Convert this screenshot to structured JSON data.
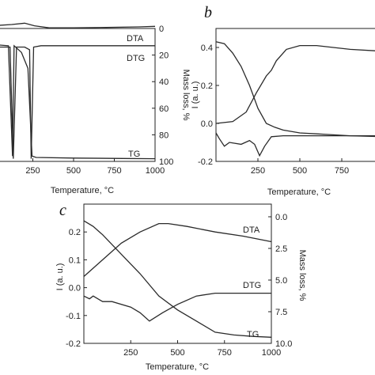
{
  "chart_data": [
    {
      "type": "line",
      "panel_label": "",
      "xlabel": "Temperature, °C",
      "ylabel_right": "Mass loss, %",
      "xlim": [
        0,
        1000
      ],
      "ylim_right": [
        100,
        0
      ],
      "x_ticks": [
        "250",
        "500",
        "750",
        "1000"
      ],
      "y_right_ticks": [
        "0",
        "20",
        "40",
        "60",
        "80",
        "100"
      ],
      "series": [
        {
          "name": "DTA",
          "points": [
            [
              0,
              -2
            ],
            [
              120,
              -3
            ],
            [
              200,
              -4
            ],
            [
              260,
              -2
            ],
            [
              350,
              -0.5
            ],
            [
              500,
              -0.5
            ],
            [
              700,
              -0.8
            ],
            [
              900,
              -1.2
            ],
            [
              1000,
              -1.6
            ]
          ]
        },
        {
          "name": "DTG",
          "points": [
            [
              0,
              14
            ],
            [
              110,
              14
            ],
            [
              130,
              98
            ],
            [
              150,
              14
            ],
            [
              170,
              14
            ],
            [
              200,
              14
            ],
            [
              230,
              16
            ],
            [
              240,
              98
            ],
            [
              255,
              14
            ],
            [
              300,
              13
            ],
            [
              500,
              13
            ],
            [
              800,
              13
            ],
            [
              1000,
              13
            ]
          ]
        },
        {
          "name": "TG",
          "points": [
            [
              0,
              12
            ],
            [
              100,
              13
            ],
            [
              125,
              96
            ],
            [
              135,
              13
            ],
            [
              180,
              18
            ],
            [
              220,
              30
            ],
            [
              245,
              96
            ],
            [
              270,
              97
            ],
            [
              500,
              97.5
            ],
            [
              800,
              97.8
            ],
            [
              1000,
              98
            ]
          ]
        }
      ],
      "labels": [
        "DTA",
        "DTG",
        "TG"
      ]
    },
    {
      "type": "line",
      "panel_label": "b",
      "xlabel": "Temperature, °C",
      "ylabel": "I (a. u.)",
      "xlim": [
        0,
        1000
      ],
      "ylim": [
        -0.2,
        0.5
      ],
      "x_ticks": [
        "250",
        "500",
        "750"
      ],
      "y_ticks": [
        "-0.2",
        "0.0",
        "0.2",
        "0.4"
      ],
      "series": [
        {
          "name": "",
          "points": [
            [
              0,
              0.43
            ],
            [
              50,
              0.42
            ],
            [
              100,
              0.37
            ],
            [
              150,
              0.3
            ],
            [
              200,
              0.2
            ],
            [
              250,
              0.08
            ],
            [
              300,
              0.0
            ],
            [
              350,
              -0.02
            ],
            [
              400,
              -0.035
            ],
            [
              500,
              -0.05
            ],
            [
              600,
              -0.055
            ],
            [
              700,
              -0.06
            ],
            [
              800,
              -0.065
            ],
            [
              1000,
              -0.07
            ]
          ]
        },
        {
          "name": "",
          "points": [
            [
              0,
              0.0
            ],
            [
              100,
              0.01
            ],
            [
              180,
              0.06
            ],
            [
              240,
              0.16
            ],
            [
              300,
              0.25
            ],
            [
              330,
              0.28
            ],
            [
              360,
              0.33
            ],
            [
              420,
              0.39
            ],
            [
              500,
              0.41
            ],
            [
              600,
              0.41
            ],
            [
              700,
              0.4
            ],
            [
              800,
              0.39
            ],
            [
              1000,
              0.38
            ]
          ]
        },
        {
          "name": "",
          "points": [
            [
              0,
              -0.05
            ],
            [
              20,
              -0.08
            ],
            [
              50,
              -0.12
            ],
            [
              80,
              -0.1
            ],
            [
              150,
              -0.11
            ],
            [
              200,
              -0.09
            ],
            [
              230,
              -0.11
            ],
            [
              260,
              -0.17
            ],
            [
              290,
              -0.12
            ],
            [
              330,
              -0.07
            ],
            [
              400,
              -0.065
            ],
            [
              600,
              -0.065
            ],
            [
              800,
              -0.065
            ],
            [
              1000,
              -0.065
            ]
          ]
        }
      ]
    },
    {
      "type": "line",
      "panel_label": "c",
      "xlabel": "Temperature, °C",
      "ylabel": "I (a. u.)",
      "ylabel_right": "Mass loss, %",
      "xlim": [
        0,
        1000
      ],
      "ylim": [
        -0.2,
        0.3
      ],
      "ylim_right": [
        10,
        -1
      ],
      "x_ticks": [
        "250",
        "500",
        "750",
        "1000"
      ],
      "y_ticks": [
        "-0.2",
        "-0.1",
        "0.0",
        "0.1",
        "0.2"
      ],
      "y_right_ticks": [
        "0.0",
        "2.5",
        "5.0",
        "7.5",
        "10.0"
      ],
      "series": [
        {
          "name": "DTA",
          "points": [
            [
              0,
              0.04
            ],
            [
              100,
              0.1
            ],
            [
              200,
              0.16
            ],
            [
              300,
              0.2
            ],
            [
              400,
              0.23
            ],
            [
              450,
              0.23
            ],
            [
              550,
              0.22
            ],
            [
              700,
              0.2
            ],
            [
              850,
              0.185
            ],
            [
              1000,
              0.165
            ]
          ]
        },
        {
          "name": "DTG",
          "points": [
            [
              0,
              -0.03
            ],
            [
              30,
              -0.04
            ],
            [
              50,
              -0.03
            ],
            [
              100,
              -0.05
            ],
            [
              150,
              -0.05
            ],
            [
              250,
              -0.07
            ],
            [
              300,
              -0.09
            ],
            [
              350,
              -0.12
            ],
            [
              420,
              -0.09
            ],
            [
              500,
              -0.06
            ],
            [
              600,
              -0.03
            ],
            [
              700,
              -0.02
            ],
            [
              850,
              -0.02
            ],
            [
              1000,
              -0.02
            ]
          ]
        },
        {
          "name": "TG",
          "points": [
            [
              0,
              0.24
            ],
            [
              50,
              0.22
            ],
            [
              100,
              0.19
            ],
            [
              200,
              0.12
            ],
            [
              300,
              0.05
            ],
            [
              400,
              -0.03
            ],
            [
              500,
              -0.08
            ],
            [
              600,
              -0.12
            ],
            [
              700,
              -0.16
            ],
            [
              800,
              -0.17
            ],
            [
              900,
              -0.175
            ],
            [
              1000,
              -0.178
            ]
          ]
        }
      ],
      "labels": [
        "DTA",
        "DTG",
        "TG"
      ]
    }
  ]
}
